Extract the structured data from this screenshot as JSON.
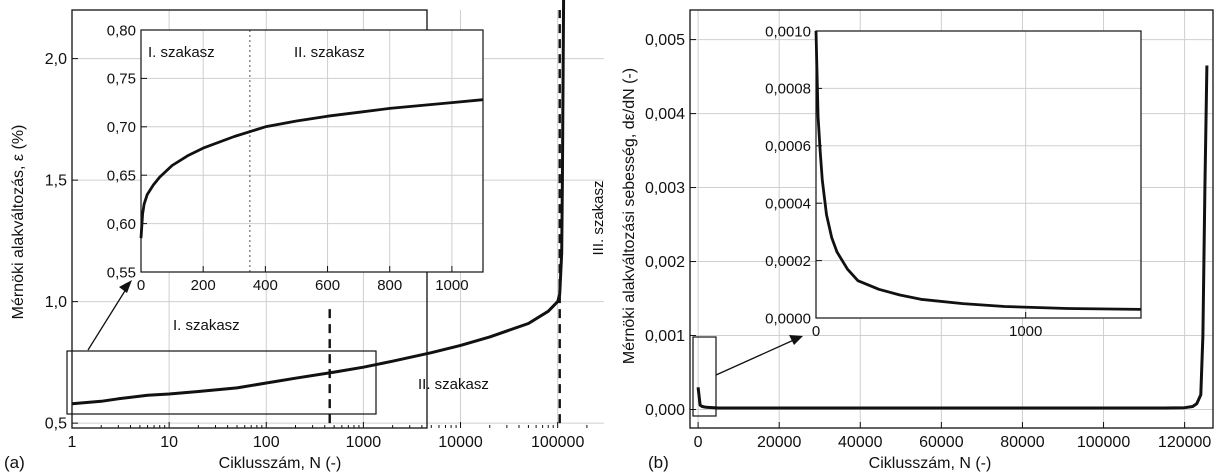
{
  "chart_data": [
    {
      "id": "a",
      "type": "line",
      "panel_label": "(a)",
      "xlabel": "Ciklusszám, N (-)",
      "ylabel": "Mérnöki alakváltozás, ε (%)",
      "x_scale": "log",
      "xlim": [
        1,
        300000
      ],
      "ylim": [
        0.48,
        2.2
      ],
      "xticks": [
        1,
        10,
        100,
        1000,
        10000,
        100000
      ],
      "xtick_labels": [
        "1",
        "10",
        "100",
        "1000",
        "10000",
        "100000"
      ],
      "yticks": [
        0.5,
        1.0,
        1.5,
        2.0
      ],
      "ytick_labels": [
        "0,5",
        "1,0",
        "1,5",
        "2,0"
      ],
      "grid": true,
      "series": [
        {
          "x": [
            1,
            2,
            3,
            6,
            10,
            20,
            50,
            100,
            200,
            500,
            1000,
            2000,
            5000,
            10000,
            20000,
            50000,
            80000,
            100000,
            105000,
            110000,
            112000,
            114000,
            115000
          ],
          "y": [
            0.58,
            0.59,
            0.6,
            0.615,
            0.62,
            0.63,
            0.645,
            0.665,
            0.685,
            0.71,
            0.73,
            0.755,
            0.79,
            0.82,
            0.855,
            0.91,
            0.96,
            1.0,
            1.03,
            1.2,
            1.5,
            2.0,
            2.25
          ]
        }
      ],
      "vlines": [
        {
          "x": 450,
          "y_from": 0.5,
          "y_to": 0.98,
          "style": "dashed"
        },
        {
          "x": 105000,
          "y_from": 0.5,
          "y_to": 2.25,
          "style": "dashed"
        }
      ],
      "annotations": [
        {
          "text": "I. szakasz",
          "x": 300,
          "y": 0.9
        },
        {
          "text": "II. szakasz",
          "x": 10000,
          "y": 0.59
        },
        {
          "text": "III. szakasz",
          "x": 200000,
          "y": 1.55,
          "rotation": -90
        }
      ],
      "inset": {
        "xlim": [
          0,
          1100
        ],
        "ylim": [
          0.55,
          0.8
        ],
        "xticks": [
          0,
          200,
          400,
          600,
          800,
          1000
        ],
        "xtick_labels": [
          "0",
          "200",
          "400",
          "600",
          "800",
          "1000"
        ],
        "yticks": [
          0.55,
          0.6,
          0.65,
          0.7,
          0.75,
          0.8
        ],
        "ytick_labels": [
          "0,55",
          "0,60",
          "0,65",
          "0,70",
          "0,75",
          "0,80"
        ],
        "grid": true,
        "series": [
          {
            "x": [
              0,
              5,
              10,
              20,
              40,
              60,
              100,
              150,
              200,
              300,
              400,
              500,
              600,
              700,
              800,
              900,
              1000,
              1100
            ],
            "y": [
              0.585,
              0.61,
              0.62,
              0.63,
              0.64,
              0.648,
              0.66,
              0.67,
              0.678,
              0.69,
              0.7,
              0.706,
              0.711,
              0.715,
              0.719,
              0.722,
              0.725,
              0.728
            ]
          }
        ],
        "vline": {
          "x": 350,
          "style": "dotted"
        },
        "annotations": [
          {
            "text": "I. szakasz",
            "x": 25,
            "y": 0.777
          },
          {
            "text": "II. szakasz",
            "x": 420,
            "y": 0.777
          }
        ]
      }
    },
    {
      "id": "b",
      "type": "line",
      "panel_label": "(b)",
      "xlabel": "Ciklusszám, N (-)",
      "ylabel": "Mérnöki alakváltozási sebesség, dε/dN (-)",
      "xlim": [
        -2000,
        127000
      ],
      "ylim": [
        -0.00025,
        0.0054
      ],
      "xticks": [
        0,
        20000,
        40000,
        60000,
        80000,
        100000,
        120000
      ],
      "xtick_labels": [
        "0",
        "20000",
        "40000",
        "60000",
        "80000",
        "100000",
        "120000"
      ],
      "yticks": [
        0.0,
        0.001,
        0.002,
        0.003,
        0.004,
        0.005
      ],
      "ytick_labels": [
        "0,000",
        "0,001",
        "0,002",
        "0,003",
        "0,004",
        "0,005"
      ],
      "grid": true,
      "series": [
        {
          "x": [
            0,
            500,
            1000,
            2000,
            5000,
            20000,
            60000,
            100000,
            115000,
            120000,
            122000,
            123000,
            124000,
            124500,
            125000,
            125500
          ],
          "y": [
            0.0003,
            6e-05,
            4e-05,
            3e-05,
            2e-05,
            2e-05,
            2e-05,
            2e-05,
            2e-05,
            2.5e-05,
            4e-05,
            8e-05,
            0.0002,
            0.001,
            0.003,
            0.00465
          ]
        }
      ],
      "inset": {
        "xlim": [
          0,
          1550
        ],
        "ylim": [
          0,
          0.001
        ],
        "xticks": [
          0,
          1000
        ],
        "xtick_labels": [
          "0",
          "1000"
        ],
        "yticks": [
          0.0,
          0.0002,
          0.0004,
          0.0006,
          0.0008,
          0.001
        ],
        "ytick_labels": [
          "0,0000",
          "0,0002",
          "0,0004",
          "0,0006",
          "0,0008",
          "0,0010"
        ],
        "grid": true,
        "series": [
          {
            "x": [
              0,
              10,
              20,
              30,
              50,
              75,
              100,
              150,
              200,
              300,
              400,
              500,
              700,
              900,
              1200,
              1550
            ],
            "y": [
              0.001,
              0.0007,
              0.00058,
              0.00048,
              0.00036,
              0.00028,
              0.00023,
              0.00017,
              0.00013,
              0.0001,
              8e-05,
              6.5e-05,
              5e-05,
              4e-05,
              3.3e-05,
              3e-05
            ]
          }
        ]
      }
    }
  ]
}
